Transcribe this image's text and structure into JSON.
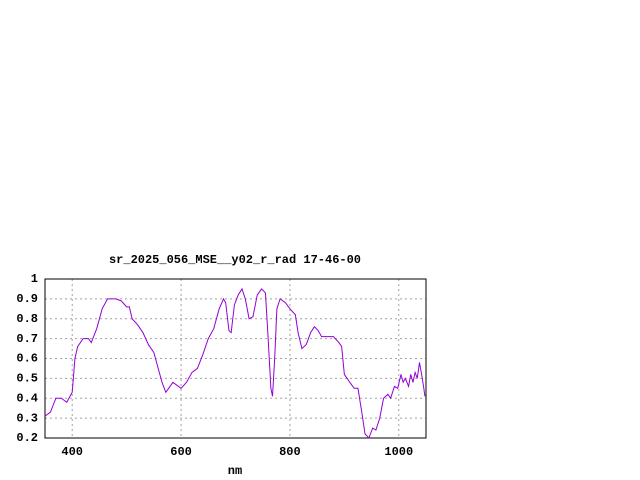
{
  "chart_data": {
    "type": "line",
    "title": "sr_2025_056_MSE__y02_r_rad 17-46-00",
    "x_label": "nm",
    "x": [
      350,
      360,
      370,
      380,
      390,
      400,
      405,
      410,
      420,
      430,
      435,
      445,
      455,
      465,
      480,
      490,
      500,
      505,
      510,
      520,
      530,
      540,
      550,
      555,
      565,
      572,
      585,
      600,
      610,
      620,
      630,
      640,
      650,
      660,
      670,
      678,
      682,
      688,
      692,
      698,
      705,
      712,
      718,
      725,
      732,
      740,
      748,
      755,
      760,
      765,
      768,
      772,
      776,
      782,
      792,
      800,
      810,
      815,
      822,
      830,
      838,
      845,
      852,
      858,
      870,
      880,
      890,
      895,
      900,
      910,
      918,
      925,
      932,
      938,
      945,
      952,
      958,
      965,
      972,
      980,
      985,
      992,
      998,
      1004,
      1008,
      1012,
      1018,
      1022,
      1026,
      1030,
      1034,
      1038,
      1042,
      1046,
      1048
    ],
    "series": [
      {
        "name": null,
        "color": "#9400d3",
        "values": [
          0.31,
          0.33,
          0.4,
          0.4,
          0.38,
          0.43,
          0.6,
          0.66,
          0.7,
          0.7,
          0.68,
          0.75,
          0.85,
          0.9,
          0.9,
          0.89,
          0.86,
          0.86,
          0.8,
          0.77,
          0.73,
          0.67,
          0.63,
          0.58,
          0.48,
          0.43,
          0.48,
          0.45,
          0.48,
          0.53,
          0.55,
          0.62,
          0.7,
          0.75,
          0.85,
          0.9,
          0.88,
          0.74,
          0.73,
          0.87,
          0.92,
          0.95,
          0.9,
          0.8,
          0.81,
          0.92,
          0.95,
          0.93,
          0.7,
          0.45,
          0.41,
          0.6,
          0.85,
          0.9,
          0.88,
          0.85,
          0.82,
          0.73,
          0.65,
          0.67,
          0.73,
          0.76,
          0.74,
          0.71,
          0.71,
          0.71,
          0.68,
          0.66,
          0.52,
          0.48,
          0.45,
          0.45,
          0.33,
          0.22,
          0.2,
          0.25,
          0.24,
          0.3,
          0.4,
          0.42,
          0.4,
          0.46,
          0.45,
          0.52,
          0.48,
          0.5,
          0.46,
          0.52,
          0.48,
          0.53,
          0.5,
          0.58,
          0.52,
          0.45,
          0.41
        ]
      }
    ],
    "xlim": [
      350,
      1050
    ],
    "xticks": [
      400,
      600,
      800,
      1000
    ],
    "ylim": [
      0.2,
      1
    ],
    "yticks": [
      0.2,
      0.3,
      0.4,
      0.5,
      0.6,
      0.7,
      0.8,
      0.9,
      1
    ],
    "grid": true
  }
}
